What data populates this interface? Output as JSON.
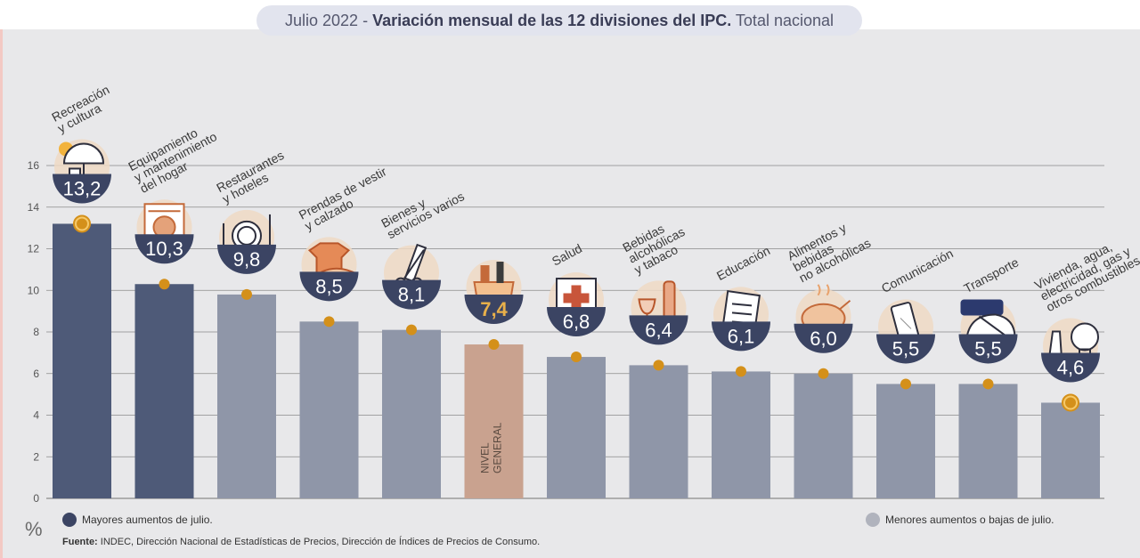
{
  "title": {
    "period": "Julio 2022",
    "separator": " - ",
    "main": "Variación mensual de las 12 divisiones del IPC.",
    "scope": " Total nacional"
  },
  "colors": {
    "major": "#4e5a78",
    "minor": "#8f96a8",
    "general": "#c9a28f",
    "dot": "#d4901a",
    "badge": "#3b4463",
    "general_text": "#e8b04a",
    "grid": "#8a8a8a",
    "icon_bg": "#eed9c4"
  },
  "legend": {
    "major": "Mayores aumentos de julio.",
    "minor": "Menores aumentos o bajas de julio."
  },
  "unit": "%",
  "source": {
    "label": "Fuente:",
    "text": " INDEC, Dirección Nacional de Estadísticas de Precios, Dirección de Índices de Precios de Consumo."
  },
  "chart_data": {
    "type": "bar",
    "title": "Variación mensual de las 12 divisiones del IPC. Total nacional",
    "ylabel": "%",
    "ylim": [
      0,
      16
    ],
    "yticks": [
      0,
      2,
      4,
      6,
      8,
      10,
      12,
      14,
      16
    ],
    "grid": true,
    "legend_position": "bottom",
    "categories": [
      "Recreación y cultura",
      "Equipamiento y mantenimiento del hogar",
      "Restaurantes y hoteles",
      "Prendas de vestir y calzado",
      "Bienes y servicios varios",
      "NIVEL GENERAL",
      "Salud",
      "Bebidas alcohólicas y tabaco",
      "Educación",
      "Alimentos y bebidas no alcohólicas",
      "Comunicación",
      "Transporte",
      "Vivienda, agua, electricidad, gas y otros combustibles"
    ],
    "label_lines": [
      [
        "Recreación",
        "y cultura"
      ],
      [
        "Equipamiento",
        "y mantenimiento",
        "del hogar"
      ],
      [
        "Restaurantes",
        "y hoteles"
      ],
      [
        "Prendas de vestir",
        "y calzado"
      ],
      [
        "Bienes y",
        "servicios varios"
      ],
      [],
      [
        "Salud"
      ],
      [
        "Bebidas",
        "alcohólicas",
        "y tabaco"
      ],
      [
        "Educación"
      ],
      [
        "Alimentos y",
        "bebidas",
        "no alcohólicas"
      ],
      [
        "Comunicación"
      ],
      [
        "Transporte"
      ],
      [
        "Vivienda, agua,",
        "electricidad, gas y",
        "otros combustibles"
      ]
    ],
    "values": [
      13.2,
      10.3,
      9.8,
      8.5,
      8.1,
      7.4,
      6.8,
      6.4,
      6.1,
      6.0,
      5.5,
      5.5,
      4.6
    ],
    "value_labels": [
      "13,2",
      "10,3",
      "9,8",
      "8,5",
      "8,1",
      "7,4",
      "6,8",
      "6,4",
      "6,1",
      "6,0",
      "5,5",
      "5,5",
      "4,6"
    ],
    "groups": [
      "major",
      "major",
      "minor",
      "minor",
      "minor",
      "general",
      "minor",
      "minor",
      "minor",
      "minor",
      "minor",
      "minor",
      "minor"
    ],
    "highlight": [
      true,
      false,
      false,
      false,
      false,
      false,
      false,
      false,
      false,
      false,
      false,
      false,
      true
    ],
    "icons": [
      "umbrella-sun-icon",
      "washing-machine-icon",
      "cutlery-plate-icon",
      "tshirt-shoe-icon",
      "scissors-comb-icon",
      "shopping-bag-icon",
      "medical-cross-icon",
      "wine-glass-bottle-icon",
      "notebook-icon",
      "roast-chicken-icon",
      "smartphone-icon",
      "bus-card-icon",
      "lightbulb-faucet-icon"
    ],
    "general_bar_text": [
      "NIVEL",
      "GENERAL"
    ]
  }
}
